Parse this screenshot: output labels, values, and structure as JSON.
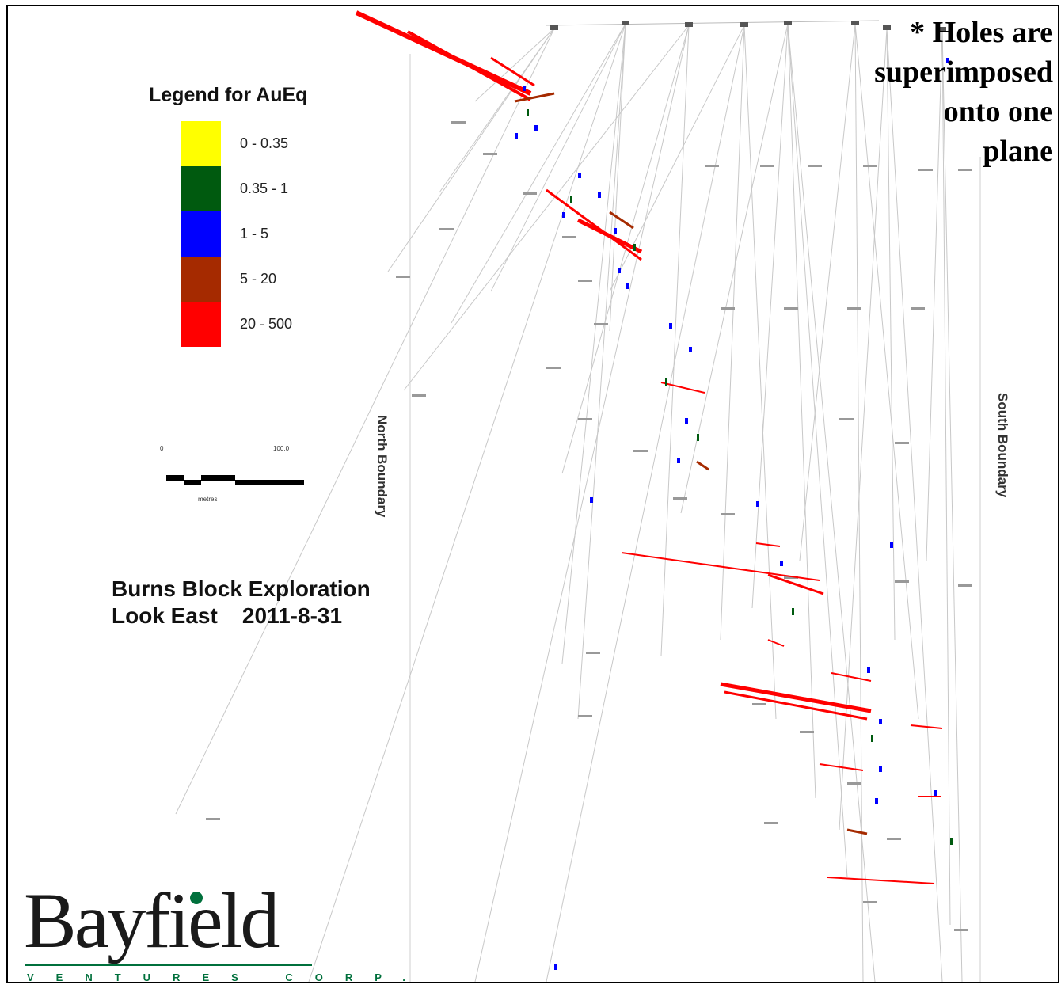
{
  "legend": {
    "title": "Legend for AuEq",
    "items": [
      {
        "label": "0 - 0.35",
        "color": "#ffff00"
      },
      {
        "label": "0.35 - 1",
        "color": "#005a0f"
      },
      {
        "label": "1 - 5",
        "color": "#0000ff"
      },
      {
        "label": "5 - 20",
        "color": "#a52a00"
      },
      {
        "label": "20 - 500",
        "color": "#ff0000"
      }
    ]
  },
  "note": {
    "line1": "* Holes are",
    "line2": "superimposed",
    "line3": "onto one",
    "line4": "plane"
  },
  "title": {
    "line1": "Burns Block Exploration",
    "line2": "Look East    2011-8-31"
  },
  "boundaries": {
    "north": "North Boundary",
    "south": "South Boundary"
  },
  "scale": {
    "start": "0",
    "end": "100.0",
    "unit": "metres"
  },
  "logo": {
    "name": "Bayfield",
    "subtitle": "VENTURES CORP.",
    "accent_color": "#00703c"
  }
}
